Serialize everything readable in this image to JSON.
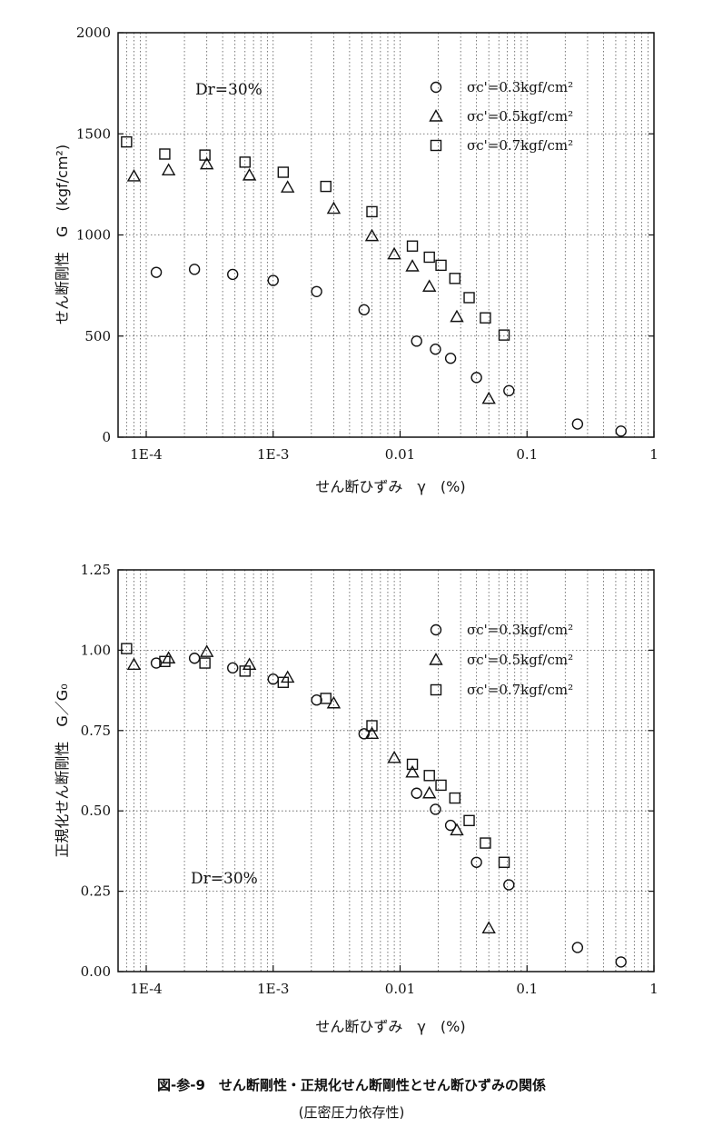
{
  "chart_data": [
    {
      "type": "scatter",
      "xscale": "log",
      "xlim": [
        6e-05,
        1
      ],
      "ylim": [
        0,
        2000
      ],
      "yticks": [
        "0",
        "500",
        "1000",
        "1500",
        "2000"
      ],
      "xticks": [
        "1E-4",
        "1E-3",
        "0.01",
        "0.1",
        "1"
      ],
      "xlabel": "せん断ひずみ　γ　(%)",
      "ylabel": "せん断剛性　G　(kgf/cm²)",
      "annotation": "Dr=30%",
      "grid": true,
      "legend_position": "top-right",
      "series": [
        {
          "name": "σc'=0.3kgf/cm²",
          "marker": "circle",
          "x": [
            0.00012,
            0.00024,
            0.00048,
            0.001,
            0.0022,
            0.0052,
            0.0135,
            0.019,
            0.025,
            0.04,
            0.072,
            0.25,
            0.55
          ],
          "y": [
            815,
            830,
            805,
            775,
            720,
            630,
            475,
            435,
            390,
            295,
            230,
            65,
            30
          ]
        },
        {
          "name": "σc'=0.5kgf/cm²",
          "marker": "triangle",
          "x": [
            8e-05,
            0.00015,
            0.0003,
            0.00065,
            0.0013,
            0.003,
            0.006,
            0.009,
            0.0125,
            0.017,
            0.028,
            0.05
          ],
          "y": [
            1290,
            1320,
            1350,
            1295,
            1235,
            1130,
            995,
            905,
            845,
            745,
            595,
            190
          ]
        },
        {
          "name": "σc'=0.7kgf/cm²",
          "marker": "square",
          "x": [
            7e-05,
            0.00014,
            0.00029,
            0.0006,
            0.0012,
            0.0026,
            0.006,
            0.0125,
            0.017,
            0.021,
            0.027,
            0.035,
            0.047,
            0.066
          ],
          "y": [
            1460,
            1400,
            1395,
            1360,
            1310,
            1240,
            1115,
            945,
            890,
            850,
            785,
            690,
            590,
            505
          ]
        }
      ]
    },
    {
      "type": "scatter",
      "xscale": "log",
      "xlim": [
        6e-05,
        1
      ],
      "ylim": [
        0,
        1.25
      ],
      "yticks": [
        "0.00",
        "0.25",
        "0.50",
        "0.75",
        "1.00",
        "1.25"
      ],
      "xticks": [
        "1E-4",
        "1E-3",
        "0.01",
        "0.1",
        "1"
      ],
      "xlabel": "せん断ひずみ　γ　(%)",
      "ylabel": "正規化せん断剛性　G／G₀",
      "annotation": "Dr=30%",
      "grid": true,
      "legend_position": "top-right",
      "series": [
        {
          "name": "σc'=0.3kgf/cm²",
          "marker": "circle",
          "x": [
            0.00012,
            0.00024,
            0.00048,
            0.001,
            0.0022,
            0.0052,
            0.0135,
            0.019,
            0.025,
            0.04,
            0.072,
            0.25,
            0.55
          ],
          "y": [
            0.96,
            0.975,
            0.945,
            0.91,
            0.845,
            0.74,
            0.555,
            0.505,
            0.455,
            0.34,
            0.27,
            0.075,
            0.03
          ]
        },
        {
          "name": "σc'=0.5kgf/cm²",
          "marker": "triangle",
          "x": [
            8e-05,
            0.00015,
            0.0003,
            0.00065,
            0.0013,
            0.003,
            0.006,
            0.009,
            0.0125,
            0.017,
            0.028,
            0.05
          ],
          "y": [
            0.955,
            0.975,
            0.995,
            0.955,
            0.915,
            0.835,
            0.74,
            0.665,
            0.62,
            0.555,
            0.44,
            0.135
          ]
        },
        {
          "name": "σc'=0.7kgf/cm²",
          "marker": "square",
          "x": [
            7e-05,
            0.00014,
            0.00029,
            0.0006,
            0.0012,
            0.0026,
            0.006,
            0.0125,
            0.017,
            0.021,
            0.027,
            0.035,
            0.047,
            0.066
          ],
          "y": [
            1.005,
            0.965,
            0.96,
            0.935,
            0.9,
            0.85,
            0.765,
            0.645,
            0.61,
            0.58,
            0.54,
            0.47,
            0.4,
            0.34
          ]
        }
      ]
    }
  ],
  "caption": {
    "line1": "図-参-9　せん断剛性・正規化せん断剛性とせん断ひずみの関係",
    "line2": "(圧密圧力依存性)"
  },
  "colors": {
    "ink": "#111111",
    "grid": "#555555",
    "background": "#ffffff"
  }
}
